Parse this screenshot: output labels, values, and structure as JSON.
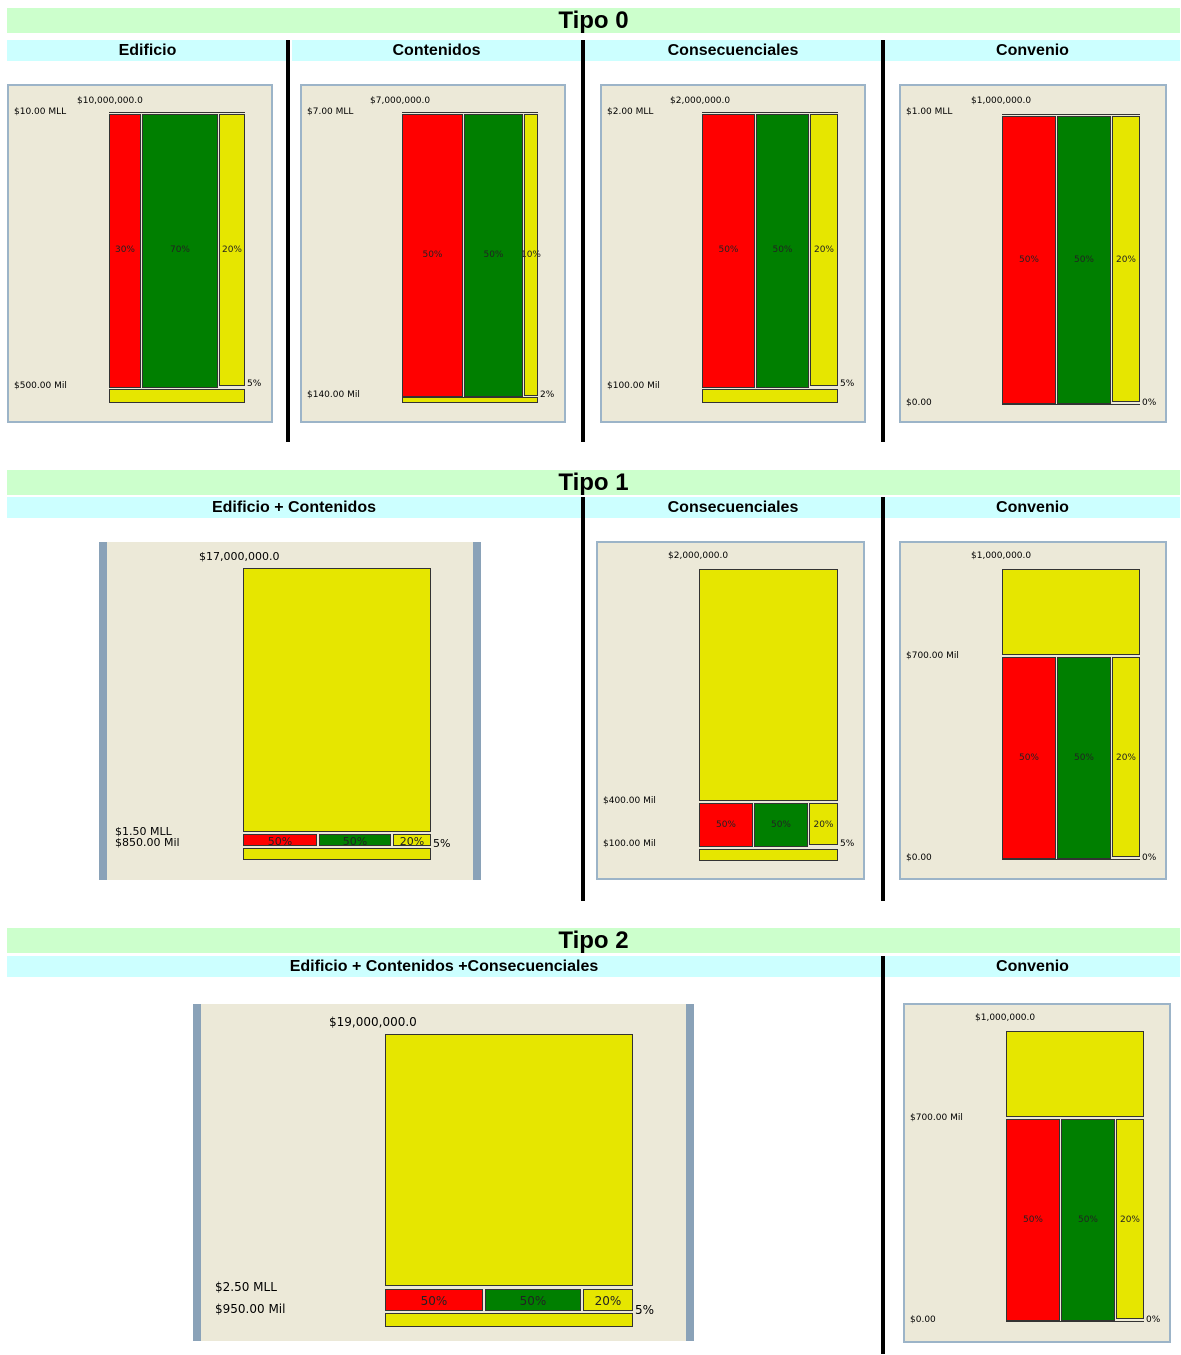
{
  "sections": [
    {
      "title": "Tipo 0",
      "columns": [
        {
          "header": "Edificio",
          "chart": {
            "top_label": "$10,000,000.0",
            "max_label": "$10.00 MLL",
            "min_label": "$500.00 Mil",
            "red_pct": "30%",
            "green_pct": "70%",
            "yellow_pct": "20%",
            "bottom_pct": "5%"
          }
        },
        {
          "header": "Contenidos",
          "chart": {
            "top_label": "$7,000,000.0",
            "max_label": "$7.00 MLL",
            "min_label": "$140.00 Mil",
            "red_pct": "50%",
            "green_pct": "50%",
            "yellow_pct": "10%",
            "bottom_pct": "2%"
          }
        },
        {
          "header": "Consecuenciales",
          "chart": {
            "top_label": "$2,000,000.0",
            "max_label": "$2.00 MLL",
            "min_label": "$100.00 Mil",
            "red_pct": "50%",
            "green_pct": "50%",
            "yellow_pct": "20%",
            "bottom_pct": "5%"
          }
        },
        {
          "header": "Convenio",
          "chart": {
            "top_label": "$1,000,000.0",
            "max_label": "$1.00 MLL",
            "min_label": "$0.00",
            "red_pct": "50%",
            "green_pct": "50%",
            "yellow_pct": "20%",
            "bottom_pct": "0%"
          }
        }
      ]
    },
    {
      "title": "Tipo 1",
      "columns": [
        {
          "header": "Edificio + Contenidos",
          "chart": {
            "top_label": "$17,000,000.0",
            "mid_label": "$1.50 MLL",
            "min_label": "$850.00 Mil",
            "red_pct": "50%",
            "green_pct": "50%",
            "yellow_pct": "20%",
            "bottom_pct": "5%"
          }
        },
        {
          "header": "Consecuenciales",
          "chart": {
            "top_label": "$2,000,000.0",
            "mid_label": "$400.00 Mil",
            "min_label": "$100.00 Mil",
            "red_pct": "50%",
            "green_pct": "50%",
            "yellow_pct": "20%",
            "bottom_pct": "5%"
          }
        },
        {
          "header": "Convenio",
          "chart": {
            "top_label": "$1,000,000.0",
            "mid_label": "$700.00 Mil",
            "min_label": "$0.00",
            "red_pct": "50%",
            "green_pct": "50%",
            "yellow_pct": "20%",
            "bottom_pct": "0%"
          }
        }
      ]
    },
    {
      "title": "Tipo 2",
      "columns": [
        {
          "header": "Edificio + Contenidos +Consecuenciales",
          "chart": {
            "top_label": "$19,000,000.0",
            "mid_label": "$2.50 MLL",
            "min_label": "$950.00 Mil",
            "red_pct": "50%",
            "green_pct": "50%",
            "yellow_pct": "20%",
            "bottom_pct": "5%"
          }
        },
        {
          "header": "Convenio",
          "chart": {
            "top_label": "$1,000,000.0",
            "mid_label": "$700.00 Mil",
            "min_label": "$0.00",
            "red_pct": "50%",
            "green_pct": "50%",
            "yellow_pct": "20%",
            "bottom_pct": "0%"
          }
        }
      ]
    }
  ],
  "colors": {
    "red": "#ff0000",
    "green": "#007f00",
    "yellow": "#e6e600",
    "title_band": "#ccffcc",
    "header_band": "#ccffff",
    "panel_bg": "#ece9d8"
  }
}
